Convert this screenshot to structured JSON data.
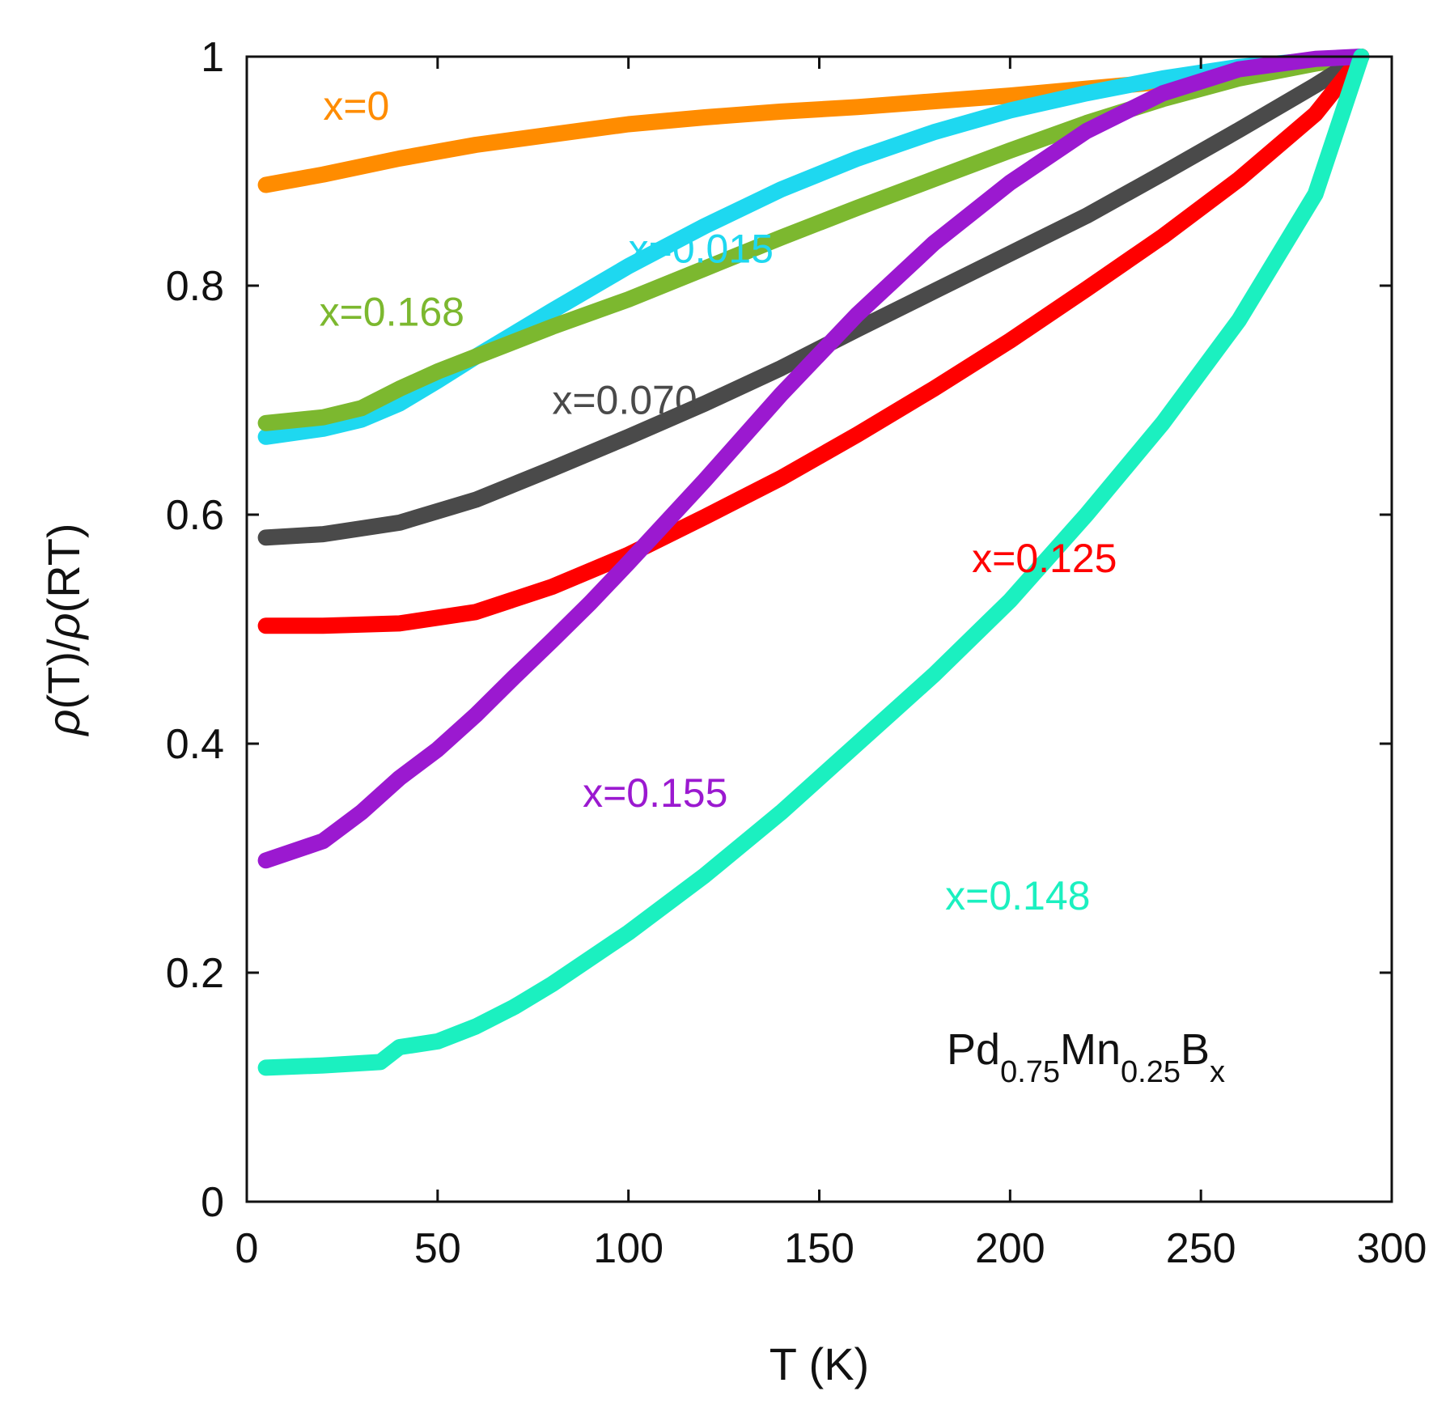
{
  "chart_data": {
    "type": "line",
    "title": "",
    "xlabel": "T (K)",
    "ylabel_parts": [
      "ρ",
      "(T)/",
      "ρ",
      "(RT)"
    ],
    "xlim": [
      0,
      300
    ],
    "ylim": [
      0,
      1
    ],
    "xticks": [
      0,
      50,
      100,
      150,
      200,
      250,
      300
    ],
    "yticks": [
      0,
      0.2,
      0.4,
      0.6,
      0.8,
      1
    ],
    "ytick_labels": [
      "0",
      "0.2",
      "0.4",
      "0.6",
      "0.8",
      "1"
    ],
    "grid": false,
    "annotation": {
      "parts": [
        "Pd",
        "0.75",
        "Mn",
        "0.25",
        "B",
        "x"
      ]
    },
    "series": [
      {
        "name": "x=0",
        "color": "#FF8C00",
        "x": [
          5,
          20,
          40,
          60,
          80,
          100,
          120,
          140,
          160,
          180,
          200,
          220,
          240,
          260,
          280,
          292
        ],
        "y": [
          0.888,
          0.897,
          0.911,
          0.923,
          0.932,
          0.941,
          0.947,
          0.952,
          0.956,
          0.961,
          0.966,
          0.972,
          0.978,
          0.986,
          0.994,
          1.0
        ]
      },
      {
        "name": "x=0.015",
        "color": "#1ED8F0",
        "x": [
          5,
          20,
          30,
          40,
          50,
          60,
          70,
          80,
          100,
          120,
          140,
          160,
          180,
          200,
          220,
          240,
          260,
          280,
          292
        ],
        "y": [
          0.668,
          0.675,
          0.683,
          0.697,
          0.717,
          0.738,
          0.758,
          0.778,
          0.817,
          0.852,
          0.884,
          0.911,
          0.934,
          0.953,
          0.968,
          0.981,
          0.991,
          0.997,
          1.0
        ]
      },
      {
        "name": "x=0.168",
        "color": "#7CB82F",
        "x": [
          5,
          20,
          30,
          40,
          50,
          60,
          80,
          100,
          120,
          140,
          160,
          180,
          200,
          220,
          240,
          260,
          280,
          292
        ],
        "y": [
          0.68,
          0.685,
          0.693,
          0.71,
          0.725,
          0.738,
          0.764,
          0.788,
          0.815,
          0.842,
          0.868,
          0.893,
          0.918,
          0.942,
          0.963,
          0.981,
          0.994,
          1.0
        ]
      },
      {
        "name": "x=0.070",
        "color": "#4A4A4A",
        "x": [
          5,
          20,
          40,
          60,
          80,
          100,
          120,
          140,
          160,
          180,
          200,
          220,
          240,
          260,
          280,
          292
        ],
        "y": [
          0.58,
          0.583,
          0.593,
          0.613,
          0.64,
          0.668,
          0.697,
          0.728,
          0.762,
          0.795,
          0.828,
          0.861,
          0.898,
          0.936,
          0.975,
          1.0
        ]
      },
      {
        "name": "x=0.125",
        "color": "#FF0000",
        "x": [
          5,
          20,
          40,
          60,
          80,
          100,
          120,
          140,
          160,
          180,
          200,
          220,
          240,
          260,
          280,
          292
        ],
        "y": [
          0.503,
          0.503,
          0.505,
          0.515,
          0.537,
          0.565,
          0.598,
          0.632,
          0.67,
          0.71,
          0.752,
          0.797,
          0.843,
          0.893,
          0.95,
          1.0
        ]
      },
      {
        "name": "x=0.155",
        "color": "#9B19D0",
        "x": [
          5,
          20,
          30,
          40,
          50,
          60,
          70,
          80,
          90,
          100,
          120,
          140,
          160,
          180,
          200,
          220,
          240,
          260,
          280,
          292
        ],
        "y": [
          0.298,
          0.315,
          0.34,
          0.37,
          0.395,
          0.425,
          0.458,
          0.49,
          0.523,
          0.558,
          0.63,
          0.705,
          0.775,
          0.837,
          0.89,
          0.935,
          0.968,
          0.989,
          0.998,
          1.0
        ]
      },
      {
        "name": "x=0.148",
        "color": "#1BF0C0",
        "x": [
          5,
          20,
          35,
          40,
          50,
          60,
          70,
          80,
          100,
          120,
          140,
          160,
          180,
          200,
          220,
          240,
          260,
          280,
          292
        ],
        "y": [
          0.117,
          0.119,
          0.122,
          0.135,
          0.14,
          0.153,
          0.17,
          0.19,
          0.235,
          0.285,
          0.34,
          0.4,
          0.46,
          0.525,
          0.6,
          0.68,
          0.77,
          0.88,
          1.0
        ]
      }
    ]
  }
}
